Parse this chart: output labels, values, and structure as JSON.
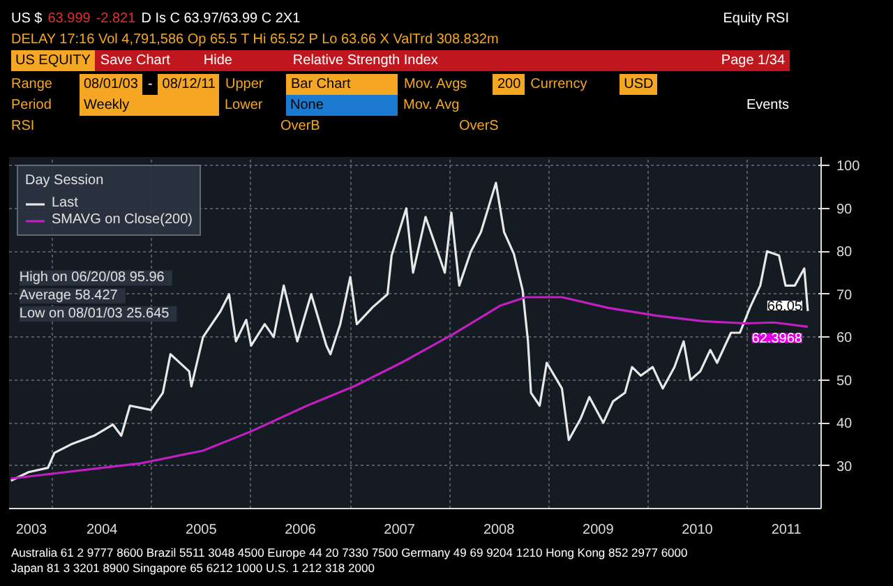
{
  "chart_data": {
    "type": "line",
    "legend_title": "Day Session",
    "legend": "top left",
    "grid": true,
    "xlim": [
      "2003-07-25",
      "2011-09-30"
    ],
    "ylim": [
      20,
      102
    ],
    "yticks": [
      30,
      40,
      50,
      60,
      70,
      80,
      90,
      100
    ],
    "xticks": [
      {
        "value": "2003-10-15",
        "label": "2003"
      },
      {
        "value": "2004-01-01",
        "label": null
      },
      {
        "value": "2004-07-01",
        "label": "2004"
      },
      {
        "value": "2005-01-01",
        "label": null
      },
      {
        "value": "2005-07-01",
        "label": "2005"
      },
      {
        "value": "2006-01-01",
        "label": null
      },
      {
        "value": "2006-07-01",
        "label": "2006"
      },
      {
        "value": "2007-01-01",
        "label": null
      },
      {
        "value": "2007-07-01",
        "label": "2007"
      },
      {
        "value": "2008-01-01",
        "label": null
      },
      {
        "value": "2008-07-01",
        "label": "2008"
      },
      {
        "value": "2009-01-01",
        "label": null
      },
      {
        "value": "2009-07-01",
        "label": "2009"
      },
      {
        "value": "2010-01-01",
        "label": null
      },
      {
        "value": "2010-07-01",
        "label": "2010"
      },
      {
        "value": "2011-01-01",
        "label": null
      },
      {
        "value": "2011-05-25",
        "label": "2011"
      }
    ],
    "series": [
      {
        "name": "Last",
        "color": "#e8e8e8",
        "x": [
          "2003-08-01",
          "2003-10-05",
          "2003-12-15",
          "2004-01-08",
          "2004-03-10",
          "2004-06-02",
          "2004-08-10",
          "2004-09-10",
          "2004-10-12",
          "2004-12-28",
          "2005-02-10",
          "2005-03-10",
          "2005-05-18",
          "2005-05-26",
          "2005-07-08",
          "2005-09-10",
          "2005-10-12",
          "2005-11-06",
          "2005-12-14",
          "2006-01-01",
          "2006-02-20",
          "2006-03-25",
          "2006-05-01",
          "2006-06-20",
          "2006-08-10",
          "2006-10-05",
          "2006-10-20",
          "2006-11-25",
          "2007-01-01",
          "2007-01-25",
          "2007-03-25",
          "2007-05-18",
          "2007-06-02",
          "2007-07-26",
          "2007-08-20",
          "2007-10-05",
          "2007-12-15",
          "2008-01-08",
          "2008-02-06",
          "2008-03-20",
          "2008-04-26",
          "2008-06-20",
          "2008-07-20",
          "2008-08-25",
          "2008-09-26",
          "2008-10-16",
          "2008-10-27",
          "2008-11-28",
          "2008-12-24",
          "2009-02-18",
          "2009-03-15",
          "2009-04-28",
          "2009-05-30",
          "2009-07-20",
          "2009-08-25",
          "2009-10-08",
          "2009-11-03",
          "2009-12-05",
          "2010-01-18",
          "2010-02-24",
          "2010-04-08",
          "2010-05-12",
          "2010-06-06",
          "2010-07-12",
          "2010-08-18",
          "2010-09-12",
          "2010-11-02",
          "2010-12-05",
          "2011-01-12",
          "2011-02-18",
          "2011-03-15",
          "2011-04-28",
          "2011-05-22",
          "2011-06-25",
          "2011-07-30",
          "2011-08-12"
        ],
        "values": [
          26.5,
          28.5,
          29.5,
          33,
          35,
          37,
          39.6,
          37,
          44,
          43,
          47,
          56,
          52,
          48.5,
          60,
          66,
          70,
          59,
          64,
          58,
          63,
          60,
          72,
          59,
          70,
          58,
          56,
          63,
          74,
          63,
          67,
          70,
          79,
          90,
          75,
          88,
          75,
          89,
          72,
          80,
          84.5,
          95.96,
          84.5,
          79.4,
          71,
          59,
          47,
          44,
          54,
          48,
          36,
          41,
          46,
          40,
          45,
          47,
          53,
          51,
          53,
          48,
          53,
          59,
          50,
          52,
          57,
          54,
          61,
          61,
          67,
          72,
          80,
          79,
          72,
          72,
          76,
          66.05
        ]
      },
      {
        "name": "SMAVG on Close(200)",
        "color": "#c21ec2",
        "x": [
          "2003-08-01",
          "2004-11-15",
          "2005-07-08",
          "2006-01-01",
          "2006-07-26",
          "2007-01-18",
          "2007-07-08",
          "2008-01-15",
          "2008-07-05",
          "2008-10-08",
          "2009-02-18",
          "2009-08-08",
          "2010-01-30",
          "2010-07-20",
          "2010-12-25",
          "2011-04-10",
          "2011-08-12"
        ],
        "values": [
          27,
          30.5,
          33.5,
          38,
          44,
          48.6,
          54,
          60.7,
          67.3,
          69.3,
          69.3,
          66.8,
          65,
          63.7,
          63.2,
          63.4,
          62.3968
        ]
      }
    ],
    "annotations": [
      "US $",
      "63.999",
      "-2.821",
      "D Is C 63.97/63.99 C 2X1",
      "Equity RSI",
      "DELAY 17:16 Vol 4,791,586 Op 65.5 T Hi 65.52 P Lo 63.66 X ValTrd 308.832m",
      "US EQUITY",
      "Save Chart",
      "Hide",
      "Relative Strength Index",
      "Page 1/34",
      "Range",
      "08/01/03",
      "-",
      "08/12/11",
      "Upper",
      "Bar Chart",
      "Mov. Avgs",
      "200",
      "Currency",
      "USD",
      "Period",
      "Weekly",
      "Lower",
      "None",
      "Mov. Avg",
      "Events",
      "RSI",
      "OverB",
      "OverS",
      "High on 06/20/08   95.96",
      "Average   58.427",
      "Low on 08/01/03   25.645",
      "Australia 61 2 9777 8600 Brazil 5511 3048 4500 Europe 44 20 7330 7500 Germany 49 69 9204 1210 Hong Kong 852 2977 6000",
      "Japan 81 3 3201 8900 Singapore 65 6212 1000 U.S. 1 212 318 2000",
      {
        "text": "66.05",
        "x": "2011-08-12",
        "y": 66.05
      },
      {
        "text": "62.3968",
        "x": "2011-08-12",
        "y": 62.3968
      }
    ]
  }
}
